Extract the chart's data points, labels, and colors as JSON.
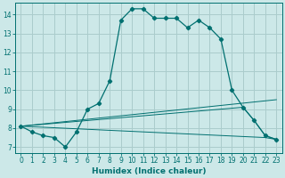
{
  "xlabel": "Humidex (Indice chaleur)",
  "bg_color": "#cce8e8",
  "grid_color": "#aacccc",
  "line_color": "#007070",
  "xlim": [
    -0.5,
    23.5
  ],
  "ylim": [
    6.7,
    14.6
  ],
  "yticks": [
    7,
    8,
    9,
    10,
    11,
    12,
    13,
    14
  ],
  "xticks": [
    0,
    1,
    2,
    3,
    4,
    5,
    6,
    7,
    8,
    9,
    10,
    11,
    12,
    13,
    14,
    15,
    16,
    17,
    18,
    19,
    20,
    21,
    22,
    23
  ],
  "series1_x": [
    0,
    1,
    2,
    3,
    4,
    5,
    6,
    7,
    8,
    9,
    10,
    11,
    12,
    13,
    14,
    15,
    16,
    17,
    18,
    19,
    20,
    21,
    22,
    23
  ],
  "series1_y": [
    8.1,
    7.8,
    7.6,
    7.5,
    7.0,
    7.8,
    9.0,
    9.3,
    10.5,
    13.7,
    14.3,
    14.3,
    13.8,
    13.8,
    13.8,
    13.3,
    13.7,
    13.3,
    12.7,
    10.0,
    9.1,
    8.4,
    7.6,
    7.4
  ],
  "series2_x": [
    0,
    23
  ],
  "series2_y": [
    8.1,
    9.5
  ],
  "series3_x": [
    0,
    20,
    21,
    22,
    23
  ],
  "series3_y": [
    8.1,
    9.1,
    8.4,
    7.6,
    7.4
  ],
  "series4_x": [
    0,
    22,
    23
  ],
  "series4_y": [
    8.1,
    7.5,
    7.4
  ]
}
